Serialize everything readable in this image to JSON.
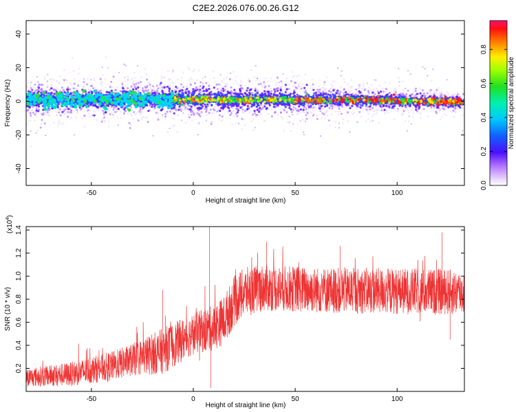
{
  "title": "C2E2.2026.076.00.26.G12",
  "colors": {
    "snr_line": "#ee3333",
    "frame": "#000000"
  },
  "chart_data": [
    {
      "type": "heatmap",
      "name": "spectrogram",
      "xlabel": "Height of straight line (km)",
      "ylabel": "Frequency (Hz)",
      "xlim": [
        -82,
        133
      ],
      "ylim": [
        -50,
        48
      ],
      "xticks": [
        -50,
        0,
        50,
        100
      ],
      "xtick_labels": [
        "-50",
        "0",
        "50",
        "100"
      ],
      "yticks": [
        -40,
        -20,
        0,
        20,
        40
      ],
      "ytick_labels": [
        "-40",
        "-20",
        "0",
        "20",
        "40"
      ],
      "colorbar": {
        "label": "Normalized spectral amplitude",
        "range": [
          0,
          0.97
        ],
        "ticks": [
          0,
          0.2,
          0.4,
          0.6,
          0.8
        ],
        "tick_labels": [
          "0.0",
          "0.2",
          "0.4",
          "0.6",
          "0.8"
        ]
      },
      "signal_center_hz": [
        {
          "x": -82,
          "y": 1
        },
        {
          "x": -50,
          "y": 1
        },
        {
          "x": -20,
          "y": 1
        },
        {
          "x": 0,
          "y": 1
        },
        {
          "x": 50,
          "y": 1
        },
        {
          "x": 100,
          "y": 0.5
        },
        {
          "x": 133,
          "y": -0.5
        }
      ]
    },
    {
      "type": "line",
      "name": "snr",
      "xlabel": "Height of straight line (km)",
      "ylabel": "SNR (10 * v/v)",
      "y_scale_note": "(x10",
      "y_scale_exp": "4",
      "y_scale_close": ")",
      "xlim": [
        -82,
        133
      ],
      "ylim": [
        0,
        1.43
      ],
      "xticks": [
        -50,
        0,
        50,
        100
      ],
      "xtick_labels": [
        "-50",
        "0",
        "50",
        "100"
      ],
      "yticks": [
        0.2,
        0.4,
        0.6,
        0.8,
        1.0,
        1.2,
        1.4
      ],
      "ytick_labels": [
        "0.2",
        "0.4",
        "0.6",
        "0.8",
        "1.0",
        "1.2",
        "1.4"
      ],
      "trend": [
        {
          "x": -82,
          "y": 0.12
        },
        {
          "x": -60,
          "y": 0.15
        },
        {
          "x": -40,
          "y": 0.22
        },
        {
          "x": -25,
          "y": 0.3
        },
        {
          "x": -15,
          "y": 0.35
        },
        {
          "x": 0,
          "y": 0.5
        },
        {
          "x": 10,
          "y": 0.55
        },
        {
          "x": 15,
          "y": 0.62
        },
        {
          "x": 20,
          "y": 0.78
        },
        {
          "x": 25,
          "y": 0.86
        },
        {
          "x": 35,
          "y": 0.9
        },
        {
          "x": 60,
          "y": 0.88
        },
        {
          "x": 100,
          "y": 0.87
        },
        {
          "x": 133,
          "y": 0.86
        }
      ],
      "spread": [
        {
          "x": -82,
          "y": 0.08
        },
        {
          "x": -30,
          "y": 0.14
        },
        {
          "x": -15,
          "y": 0.2
        },
        {
          "x": 0,
          "y": 0.18
        },
        {
          "x": 20,
          "y": 0.22
        },
        {
          "x": 40,
          "y": 0.2
        },
        {
          "x": 133,
          "y": 0.2
        }
      ],
      "spikes": [
        {
          "x": -15,
          "y": 0.88
        },
        {
          "x": 8,
          "y": 1.43
        },
        {
          "x": 8.6,
          "y": 0.03
        },
        {
          "x": 36,
          "y": 1.3
        },
        {
          "x": 72,
          "y": 1.26
        },
        {
          "x": 122,
          "y": 1.38
        },
        {
          "x": 126,
          "y": 0.45
        }
      ]
    }
  ]
}
